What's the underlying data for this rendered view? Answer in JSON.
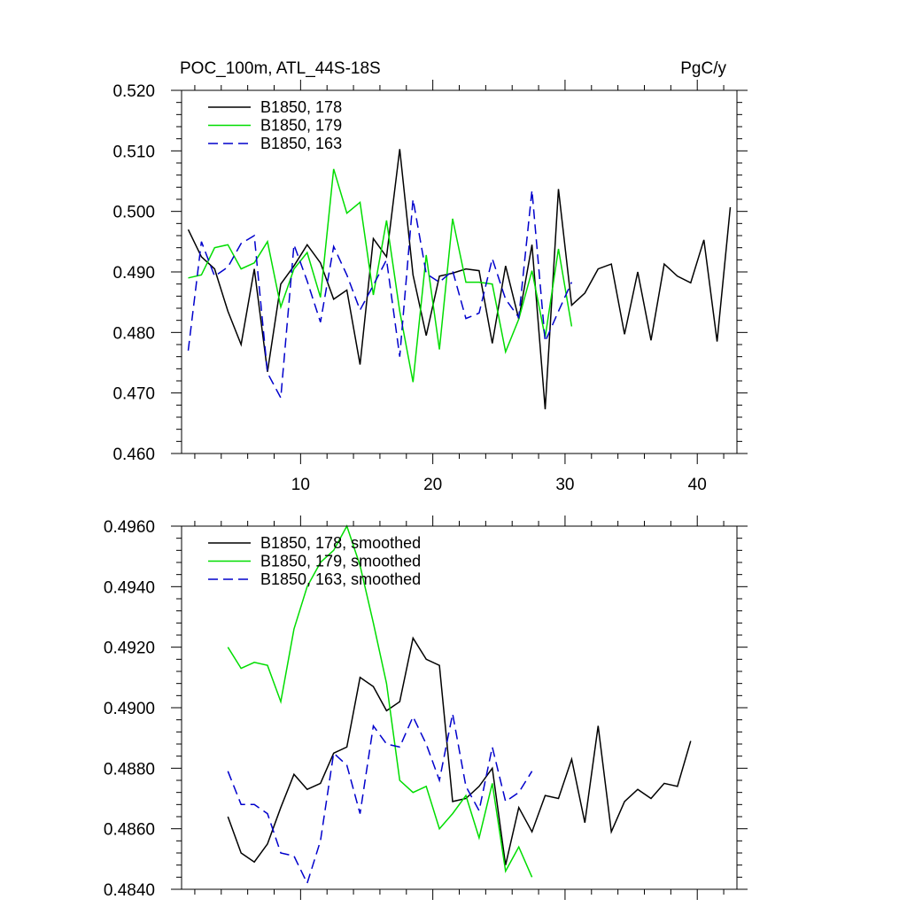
{
  "chart_data": [
    {
      "type": "line",
      "title_left": "POC_100m, ATL_44S-18S",
      "title_right": "PgC/y",
      "xlim": [
        1,
        43
      ],
      "ylim": [
        0.46,
        0.52
      ],
      "x_ticks": [
        10,
        20,
        30,
        40
      ],
      "x_tick_labels": [
        "10",
        "20",
        "30",
        "40"
      ],
      "y_ticks": [
        0.46,
        0.47,
        0.48,
        0.49,
        0.5,
        0.51,
        0.52
      ],
      "y_tick_labels": [
        "0.460",
        "0.470",
        "0.480",
        "0.490",
        "0.500",
        "0.510",
        "0.520"
      ],
      "series": [
        {
          "name": "B1850, 178",
          "color": "#000000",
          "dash": "solid",
          "x": [
            1.5,
            2.5,
            3.5,
            4.5,
            5.5,
            6.5,
            7.5,
            8.5,
            9.5,
            10.5,
            11.5,
            12.5,
            13.5,
            14.5,
            15.5,
            16.5,
            17.5,
            18.5,
            19.5,
            20.5,
            21.5,
            22.5,
            23.5,
            24.5,
            25.5,
            26.5,
            27.5,
            28.5,
            29.5,
            30.5,
            31.5,
            32.5,
            33.5,
            34.5,
            35.5,
            36.5,
            37.5,
            38.5,
            39.5,
            40.5,
            41.5,
            42.5
          ],
          "values": [
            0.497,
            0.4925,
            0.4905,
            0.4835,
            0.478,
            0.4905,
            0.4735,
            0.488,
            0.491,
            0.4945,
            0.4915,
            0.4855,
            0.487,
            0.4747,
            0.4955,
            0.4925,
            0.5103,
            0.4895,
            0.4795,
            0.4893,
            0.4898,
            0.4905,
            0.4902,
            0.4782,
            0.491,
            0.4822,
            0.4945,
            0.4673,
            0.5037,
            0.4845,
            0.4865,
            0.4905,
            0.4913,
            0.4797,
            0.49,
            0.4787,
            0.4913,
            0.4893,
            0.4882,
            0.4953,
            0.4785,
            0.5007
          ]
        },
        {
          "name": "B1850, 179",
          "color": "#00dd00",
          "dash": "solid",
          "x": [
            1.5,
            2.5,
            3.5,
            4.5,
            5.5,
            6.5,
            7.5,
            8.5,
            9.5,
            10.5,
            11.5,
            12.5,
            13.5,
            14.5,
            15.5,
            16.5,
            17.5,
            18.5,
            19.5,
            20.5,
            21.5,
            22.5,
            23.5,
            24.5,
            25.5,
            26.5,
            27.5,
            28.5,
            29.5,
            30.5
          ],
          "values": [
            0.489,
            0.4895,
            0.494,
            0.4945,
            0.4905,
            0.4915,
            0.495,
            0.4842,
            0.4905,
            0.4932,
            0.4858,
            0.507,
            0.4997,
            0.5015,
            0.4862,
            0.4985,
            0.4835,
            0.4718,
            0.4928,
            0.4772,
            0.4988,
            0.4883,
            0.4883,
            0.488,
            0.4768,
            0.4822,
            0.4902,
            0.4792,
            0.4938,
            0.481
          ]
        },
        {
          "name": "B1850, 163",
          "color": "#0000cc",
          "dash": "dashed",
          "x": [
            1.5,
            2.5,
            3.5,
            4.5,
            5.5,
            6.5,
            7.5,
            8.5,
            9.5,
            10.5,
            11.5,
            12.5,
            13.5,
            14.5,
            15.5,
            16.5,
            17.5,
            18.5,
            19.5,
            20.5,
            21.5,
            22.5,
            23.5,
            24.5,
            25.5,
            26.5,
            27.5,
            28.5,
            29.5,
            30.5
          ],
          "values": [
            0.477,
            0.495,
            0.4893,
            0.4908,
            0.4947,
            0.496,
            0.4733,
            0.4692,
            0.4945,
            0.4885,
            0.4817,
            0.4942,
            0.4895,
            0.4837,
            0.4878,
            0.492,
            0.476,
            0.502,
            0.4897,
            0.4883,
            0.4902,
            0.4823,
            0.4832,
            0.4922,
            0.4855,
            0.4825,
            0.5035,
            0.4785,
            0.4835,
            0.4883
          ]
        }
      ]
    },
    {
      "type": "line",
      "xlim": [
        1,
        43
      ],
      "ylim": [
        0.484,
        0.496
      ],
      "x_ticks": [
        10,
        20,
        30,
        40
      ],
      "y_ticks": [
        0.484,
        0.486,
        0.488,
        0.49,
        0.492,
        0.494,
        0.496
      ],
      "y_tick_labels": [
        "0.4840",
        "0.4860",
        "0.4880",
        "0.4900",
        "0.4920",
        "0.4940",
        "0.4960"
      ],
      "series": [
        {
          "name": "B1850, 178, smoothed",
          "color": "#000000",
          "dash": "solid",
          "x": [
            4.5,
            5.5,
            6.5,
            7.5,
            8.5,
            9.5,
            10.5,
            11.5,
            12.5,
            13.5,
            14.5,
            15.5,
            16.5,
            17.5,
            18.5,
            19.5,
            20.5,
            21.5,
            22.5,
            23.5,
            24.5,
            25.5,
            26.5,
            27.5,
            28.5,
            29.5,
            30.5,
            31.5,
            32.5,
            33.5,
            34.5,
            35.5,
            36.5,
            37.5,
            38.5,
            39.5
          ],
          "values": [
            0.4864,
            0.4852,
            0.4849,
            0.4855,
            0.4867,
            0.4878,
            0.4873,
            0.4875,
            0.4885,
            0.4887,
            0.491,
            0.4907,
            0.4899,
            0.4902,
            0.4923,
            0.4916,
            0.4914,
            0.4869,
            0.487,
            0.4874,
            0.488,
            0.4848,
            0.4867,
            0.4859,
            0.4871,
            0.487,
            0.4883,
            0.4862,
            0.4894,
            0.4859,
            0.4869,
            0.4873,
            0.487,
            0.4875,
            0.4874,
            0.4889
          ]
        },
        {
          "name": "B1850, 179, smoothed",
          "color": "#00dd00",
          "dash": "solid",
          "x": [
            4.5,
            5.5,
            6.5,
            7.5,
            8.5,
            9.5,
            10.5,
            11.5,
            12.5,
            13.5,
            14.5,
            15.5,
            16.5,
            17.5,
            18.5,
            19.5,
            20.5,
            21.5,
            22.5,
            23.5,
            24.5,
            25.5,
            26.5,
            27.5
          ],
          "values": [
            0.492,
            0.4913,
            0.4915,
            0.4914,
            0.4902,
            0.4926,
            0.494,
            0.4948,
            0.4952,
            0.496,
            0.4947,
            0.4928,
            0.4908,
            0.4876,
            0.4872,
            0.4874,
            0.486,
            0.4865,
            0.4871,
            0.4857,
            0.4875,
            0.4846,
            0.4854,
            0.4844
          ]
        },
        {
          "name": "B1850, 163, smoothed",
          "color": "#0000cc",
          "dash": "dashed",
          "x": [
            4.5,
            5.5,
            6.5,
            7.5,
            8.5,
            9.5,
            10.5,
            11.5,
            12.5,
            13.5,
            14.5,
            15.5,
            16.5,
            17.5,
            18.5,
            19.5,
            20.5,
            21.5,
            22.5,
            23.5,
            24.5,
            25.5,
            26.5,
            27.5
          ],
          "values": [
            0.4879,
            0.4868,
            0.4868,
            0.4865,
            0.4852,
            0.4851,
            0.4842,
            0.4856,
            0.4885,
            0.4881,
            0.4865,
            0.4894,
            0.4888,
            0.4887,
            0.4897,
            0.4888,
            0.4876,
            0.4898,
            0.4874,
            0.4866,
            0.4887,
            0.4869,
            0.4872,
            0.4879
          ]
        }
      ]
    }
  ]
}
